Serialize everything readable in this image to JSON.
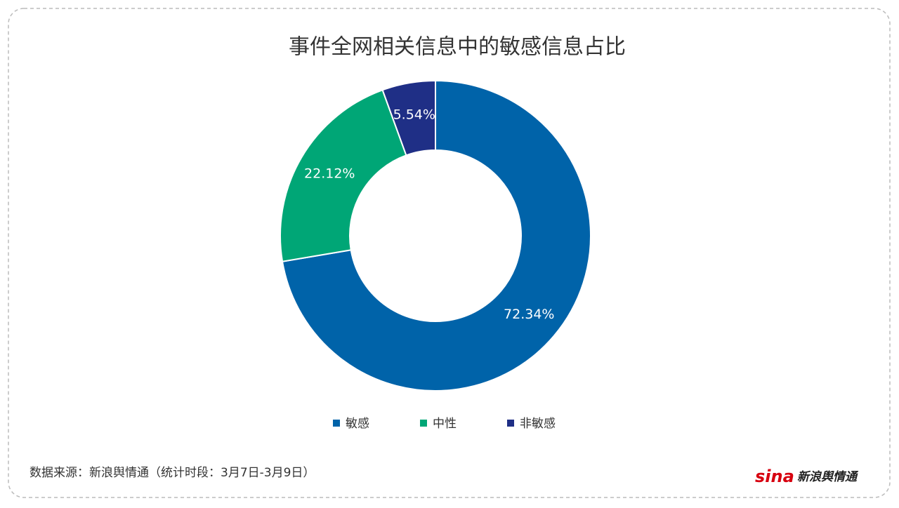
{
  "chart_data": {
    "type": "donut",
    "title": "事件全网相关信息中的敏感信息占比",
    "categories": [
      "敏感",
      "中性",
      "非敏感"
    ],
    "values": [
      72.34,
      22.12,
      5.54
    ],
    "value_labels": [
      "72.34%",
      "22.12%",
      "5.54%"
    ],
    "colors": [
      "#0063a9",
      "#00a676",
      "#1f2f86"
    ],
    "legend": "bottom"
  },
  "footer": {
    "source": "数据来源：新浪舆情通（统计时段：3月7日-3月9日）",
    "logo_mark": "sina",
    "logo_text": "新浪舆情通"
  }
}
